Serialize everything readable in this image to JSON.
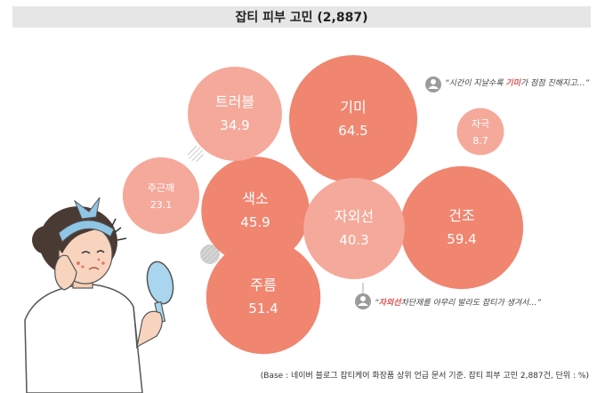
{
  "chart_data": {
    "type": "bubble",
    "title": "잡티 피부 고민 (2,887)",
    "items": [
      {
        "label": "기미",
        "value": 64.5,
        "color": "#f08570"
      },
      {
        "label": "건조",
        "value": 59.4,
        "color": "#f08570"
      },
      {
        "label": "주름",
        "value": 51.4,
        "color": "#f08570"
      },
      {
        "label": "색소",
        "value": 45.9,
        "color": "#f08570"
      },
      {
        "label": "자외선",
        "value": 40.3,
        "color": "#f5a99b"
      },
      {
        "label": "트러블",
        "value": 34.9,
        "color": "#f5a99b"
      },
      {
        "label": "주근깨",
        "value": 23.1,
        "color": "#f5a99b"
      },
      {
        "label": "자극",
        "value": 8.7,
        "color": "#f5a99b"
      }
    ],
    "value_suffix": "",
    "footnote": "(Base : 네이버 블로그 잡티케어 화장품 상위 언급 문서 기준. 잡티 피부 고민 2,887건, 단위 : %)"
  },
  "quotes": [
    {
      "prefix": "“시간이 지날수록 ",
      "highlight": "기미",
      "suffix": "가 점점 진해지고…”"
    },
    {
      "prefix": "“",
      "highlight": "자외선",
      "suffix": "차단제를 아무리 발라도 잡티가 생겨서…”"
    }
  ],
  "colors": {
    "strong": "#f08570",
    "light": "#f5a99b",
    "title_bg": "#e6e6e6"
  }
}
